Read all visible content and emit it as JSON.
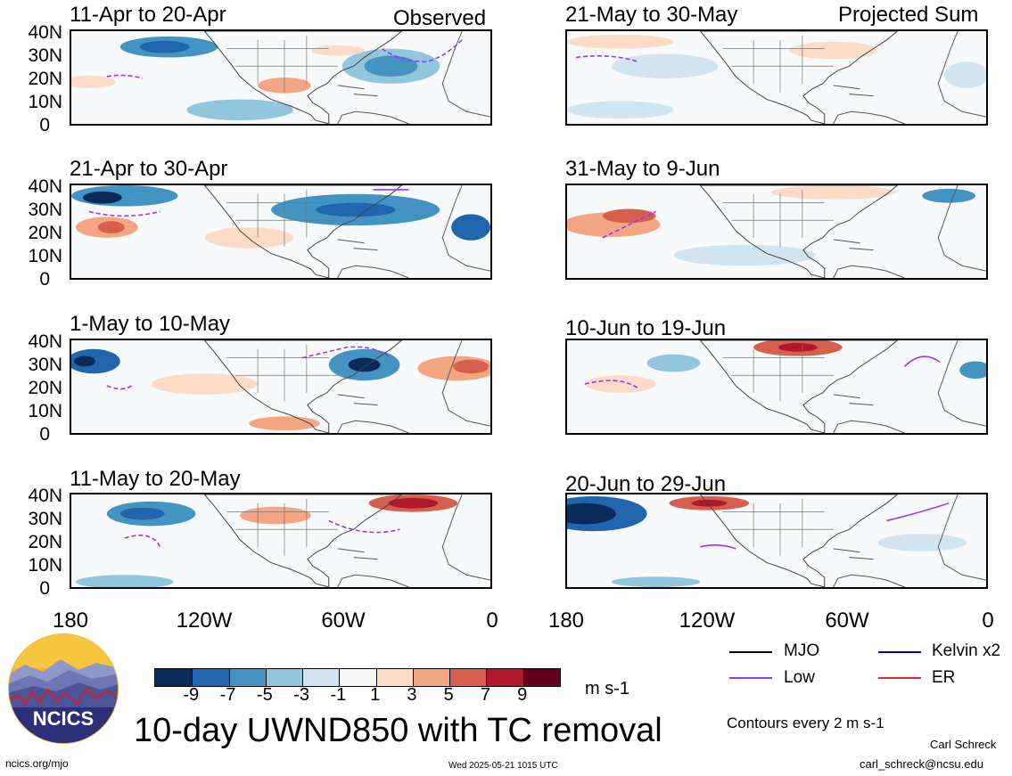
{
  "header": {
    "observed_label": "Observed",
    "projected_label": "Projected Sum"
  },
  "panels_left": [
    {
      "title": "11-Apr to 20-Apr"
    },
    {
      "title": "21-Apr to 30-Apr"
    },
    {
      "title": "1-May to 10-May"
    },
    {
      "title": "11-May to 20-May"
    }
  ],
  "panels_right": [
    {
      "title": "21-May to 30-May"
    },
    {
      "title": "31-May to 9-Jun"
    },
    {
      "title": "10-Jun to 19-Jun"
    },
    {
      "title": "20-Jun to 29-Jun"
    }
  ],
  "lat_labels": [
    "40N",
    "30N",
    "20N",
    "10N",
    "0"
  ],
  "lon_labels": [
    "180",
    "120W",
    "60W",
    "0"
  ],
  "colorbar": {
    "ticks": [
      "-9",
      "-7",
      "-5",
      "-3",
      "-1",
      "1",
      "3",
      "5",
      "7",
      "9"
    ],
    "colors": [
      "#0b2a5c",
      "#2166ac",
      "#4393c3",
      "#92c5de",
      "#d1e5f0",
      "#f7f7f7",
      "#fddbc7",
      "#f4a582",
      "#d6604d",
      "#b2182b",
      "#67001f"
    ],
    "units": "m s-1"
  },
  "legend": {
    "items": [
      {
        "label": "MJO",
        "color": "#000000"
      },
      {
        "label": "Kelvin x2",
        "color": "#0000cc"
      },
      {
        "label": "Low",
        "color": "#9933ff"
      },
      {
        "label": "ER",
        "color": "#ee2222"
      }
    ],
    "contours_note": "Contours every 2 m s-1"
  },
  "main_title": "10-day UWND850 with TC removal",
  "footer": {
    "website": "ncics.org/mjo",
    "timestamp": "Wed 2025-05-21 1015 UTC",
    "author": "Carl Schreck",
    "email": "carl_schreck@ncsu.edu"
  },
  "logo": {
    "text": "NCICS"
  }
}
